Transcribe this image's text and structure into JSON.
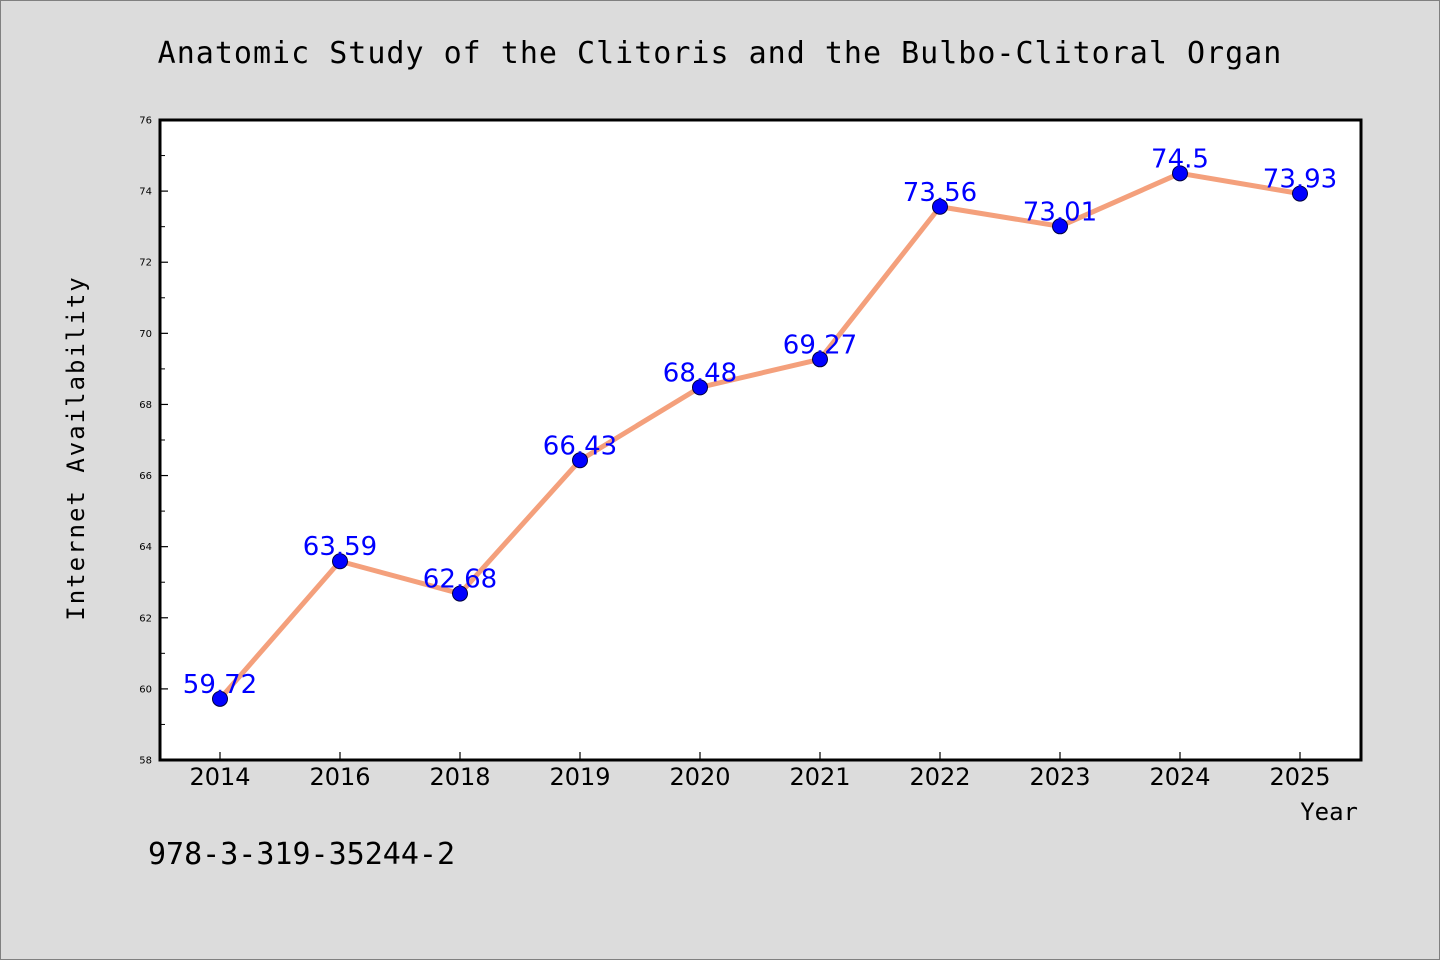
{
  "chart_data": {
    "type": "line",
    "title": "Anatomic Study of the Clitoris and the Bulbo-Clitoral Organ",
    "xlabel": "Year",
    "ylabel": "Internet Availability",
    "categories": [
      "2014",
      "2016",
      "2018",
      "2019",
      "2020",
      "2021",
      "2022",
      "2023",
      "2024",
      "2025"
    ],
    "series": [
      {
        "values": [
          59.72,
          63.59,
          62.68,
          66.43,
          68.48,
          69.27,
          73.56,
          73.01,
          74.5,
          73.93
        ],
        "labels": [
          "59.72",
          "63.59",
          "62.68",
          "66.43",
          "68.48",
          "69.27",
          "73.56",
          "73.01",
          "74.5",
          "73.93"
        ]
      }
    ],
    "ylim": [
      58,
      76
    ],
    "yticks": [
      58,
      60,
      62,
      64,
      66,
      68,
      70,
      72,
      74,
      76
    ],
    "ytick_labels": [
      "58",
      "60",
      "62",
      "64",
      "66",
      "68",
      "70",
      "72",
      "74",
      "76"
    ],
    "grid": false,
    "line_color": "#f4a07c",
    "marker_color": "#0000ff",
    "label_color": "#0000ff",
    "background_color": "#dcdcdc",
    "plot_background": "#ffffff"
  },
  "footer": {
    "isbn": "978-3-319-35244-2"
  }
}
